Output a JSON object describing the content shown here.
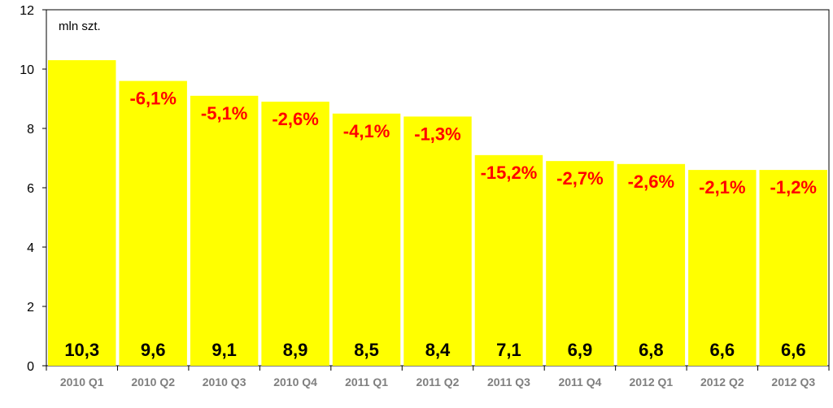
{
  "chart_data": {
    "type": "bar",
    "unit_label": "mln szt.",
    "categories": [
      "2010 Q1",
      "2010 Q2",
      "2010 Q3",
      "2010 Q4",
      "2011 Q1",
      "2011 Q2",
      "2011 Q3",
      "2011 Q4",
      "2012 Q1",
      "2012 Q2",
      "2012 Q3"
    ],
    "values": [
      10.3,
      9.6,
      9.1,
      8.9,
      8.5,
      8.4,
      7.1,
      6.9,
      6.8,
      6.6,
      6.6
    ],
    "value_labels": [
      "10,3",
      "9,6",
      "9,1",
      "8,9",
      "8,5",
      "8,4",
      "7,1",
      "6,9",
      "6,8",
      "6,6",
      "6,6"
    ],
    "change_labels": [
      "",
      "-6,1%",
      "-5,1%",
      "-2,6%",
      "-4,1%",
      "-1,3%",
      "-15,2%",
      "-2,7%",
      "-2,6%",
      "-2,1%",
      "-1,2%"
    ],
    "yticks": [
      "0",
      "2",
      "4",
      "6",
      "8",
      "10",
      "12"
    ],
    "ylim": [
      0,
      12
    ],
    "grid": false,
    "legend": "none",
    "colors": {
      "bar": "#ffff00",
      "change_label": "#ff0000",
      "value_label": "#000000",
      "tick_label": "#7f7f7f",
      "background": "#ffffff",
      "axis": "#000000"
    }
  }
}
